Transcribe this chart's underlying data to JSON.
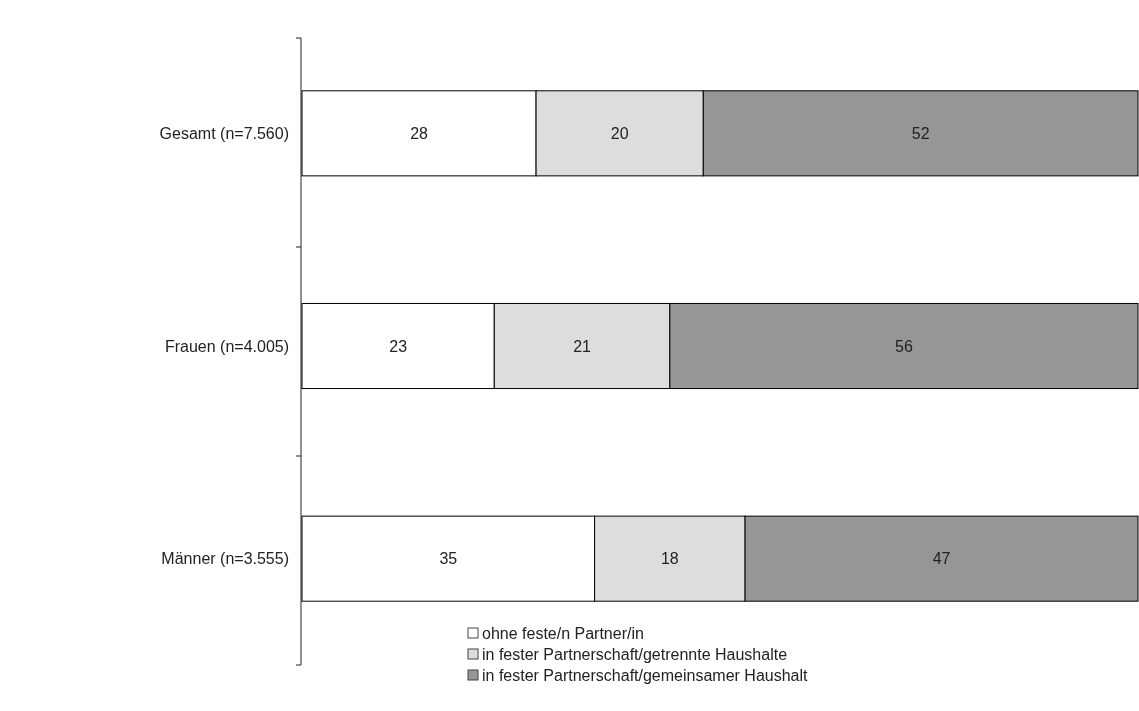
{
  "chart_data": {
    "type": "bar",
    "orientation": "horizontal",
    "stacked": true,
    "categories": [
      "Gesamt (n=7.560)",
      "Frauen (n=4.005)",
      "Männer (n=3.555)"
    ],
    "series": [
      {
        "name": "ohne feste/n Partner/in",
        "color": "#ffffff",
        "values": [
          28,
          23,
          35
        ]
      },
      {
        "name": "in fester Partnerschaft/getrennte Haushalte",
        "color": "#dddddd",
        "values": [
          20,
          21,
          18
        ]
      },
      {
        "name": "in fester Partnerschaft/gemeinsamer Haushalt",
        "color": "#969696",
        "values": [
          52,
          56,
          47
        ]
      }
    ],
    "data_labels": true,
    "legend": "bottom",
    "grid": false
  }
}
